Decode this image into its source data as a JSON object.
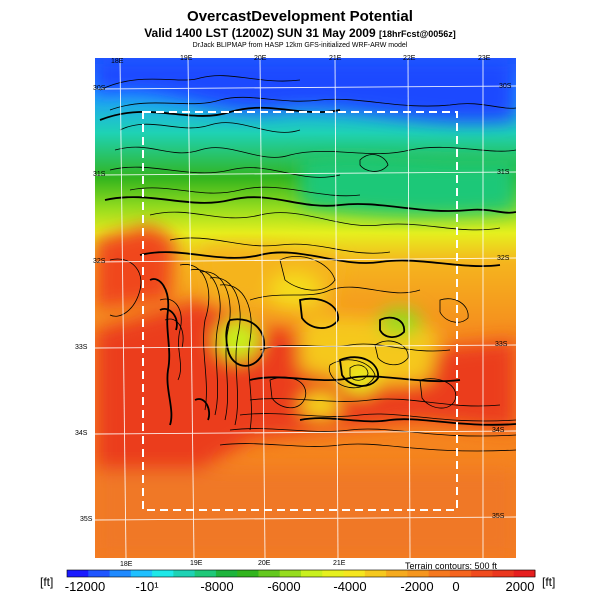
{
  "title": "OvercastDevelopment Potential",
  "subtitle": "Valid 1400 LST (1200Z) SUN 31 May 2009",
  "subtitle_fcst": "[18hrFcst@0056z]",
  "credit": "DrJack BLIPMAP from HASP 12km GFS-initialized WRF-ARW model",
  "terrain_note": "Terrain contours: 500 ft",
  "unit_left": "[ft]",
  "unit_right": "[ft]",
  "lon_top": [
    "18E",
    "19E",
    "20E",
    "21E",
    "22E",
    "23E"
  ],
  "lon_bottom": [
    "18E",
    "19E",
    "20E",
    "21E"
  ],
  "lat_left": [
    "30S",
    "31S",
    "32S",
    "33S",
    "34S",
    "35S"
  ],
  "lat_right": [
    "30S",
    "31S",
    "32S",
    "33S",
    "34S",
    "35S"
  ],
  "colorbar": {
    "min": -12000,
    "max": 2000,
    "labels": [
      "-12000",
      "-10¹",
      "-8000",
      "-6000",
      "-4000",
      "-2000",
      "0",
      "2000"
    ],
    "colors": [
      "#1a1aff",
      "#1f55ff",
      "#1f8aff",
      "#1fc0ff",
      "#1ee8e8",
      "#1ed2b4",
      "#1ec878",
      "#1eb43c",
      "#32b41e",
      "#64c81e",
      "#96dc1e",
      "#c8f01e",
      "#e6f01e",
      "#f5e61e",
      "#f5c81e",
      "#f5aa1e",
      "#f5961e",
      "#f5781e",
      "#f5641e",
      "#f04b1e",
      "#eb371e",
      "#e61e1e"
    ]
  },
  "colors": {
    "box_border": "#ffffff",
    "grid": "#ffffff",
    "contour": "#000000"
  }
}
